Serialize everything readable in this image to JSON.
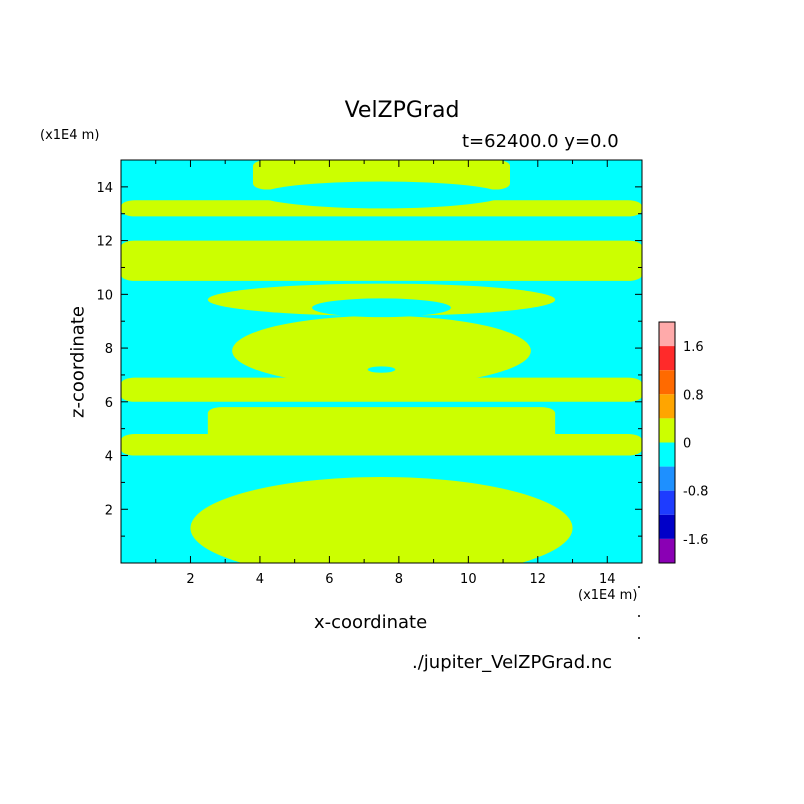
{
  "chart_data": {
    "type": "heatmap",
    "title": "VelZPGrad",
    "subtitle": "t=62400.0 y=0.0",
    "xlabel": "x-coordinate",
    "ylabel": "z-coordinate",
    "x_unit": "(x1E4 m)",
    "y_unit": "(x1E4 m)",
    "xlim": [
      0,
      15
    ],
    "ylim": [
      0,
      15
    ],
    "x_ticks": [
      "2",
      "4",
      "6",
      "8",
      "10",
      "12",
      "14"
    ],
    "y_ticks": [
      "2",
      "4",
      "6",
      "8",
      "10",
      "12",
      "14"
    ],
    "colorbar": {
      "tick_labels": [
        "1.6",
        "0.8",
        "0",
        "-0.8",
        "-1.6"
      ],
      "levels": [
        2.0,
        1.6,
        1.2,
        0.8,
        0.4,
        0.0,
        -0.4,
        -0.8,
        -1.2,
        -1.6,
        -2.0
      ],
      "colors": [
        "#ffaaaa",
        "#ff2a2a",
        "#ff6a00",
        "#ffa500",
        "#ccff00",
        "#00ffff",
        "#1e90ff",
        "#1e3cff",
        "#0000c8",
        "#8a00b4"
      ]
    },
    "colors": {
      "negative_band": "#00ffff",
      "positive_band": "#ccff00"
    },
    "positive_regions": [
      {
        "type": "rect",
        "x": [
          3.8,
          11.2
        ],
        "z": [
          13.9,
          15.0
        ]
      },
      {
        "type": "rect",
        "x": [
          0.0,
          15.0
        ],
        "z": [
          12.9,
          13.5
        ]
      },
      {
        "type": "rect",
        "x": [
          0.0,
          15.0
        ],
        "z": [
          10.5,
          12.0
        ]
      },
      {
        "type": "ellipse",
        "cx": 7.5,
        "cz": 9.8,
        "rx": 5.0,
        "rz": 0.6
      },
      {
        "type": "ellipse",
        "cx": 7.5,
        "cz": 7.9,
        "rx": 4.3,
        "rz": 1.3
      },
      {
        "type": "rect",
        "x": [
          0.0,
          15.0
        ],
        "z": [
          6.0,
          6.9
        ]
      },
      {
        "type": "rect",
        "x": [
          2.5,
          12.5
        ],
        "z": [
          4.5,
          5.8
        ]
      },
      {
        "type": "rect",
        "x": [
          0.0,
          15.0
        ],
        "z": [
          4.0,
          4.8
        ]
      },
      {
        "type": "ellipse",
        "cx": 7.5,
        "cz": 1.3,
        "rx": 5.5,
        "rz": 1.9
      }
    ],
    "negative_regions": [
      {
        "type": "ellipse",
        "cx": 7.5,
        "cz": 13.7,
        "rx": 3.5,
        "rz": 0.5
      },
      {
        "type": "ellipse",
        "cx": 7.5,
        "cz": 9.5,
        "rx": 2.0,
        "rz": 0.35
      },
      {
        "type": "ellipse",
        "cx": 7.5,
        "cz": 7.2,
        "rx": 0.4,
        "rz": 0.12
      }
    ]
  }
}
